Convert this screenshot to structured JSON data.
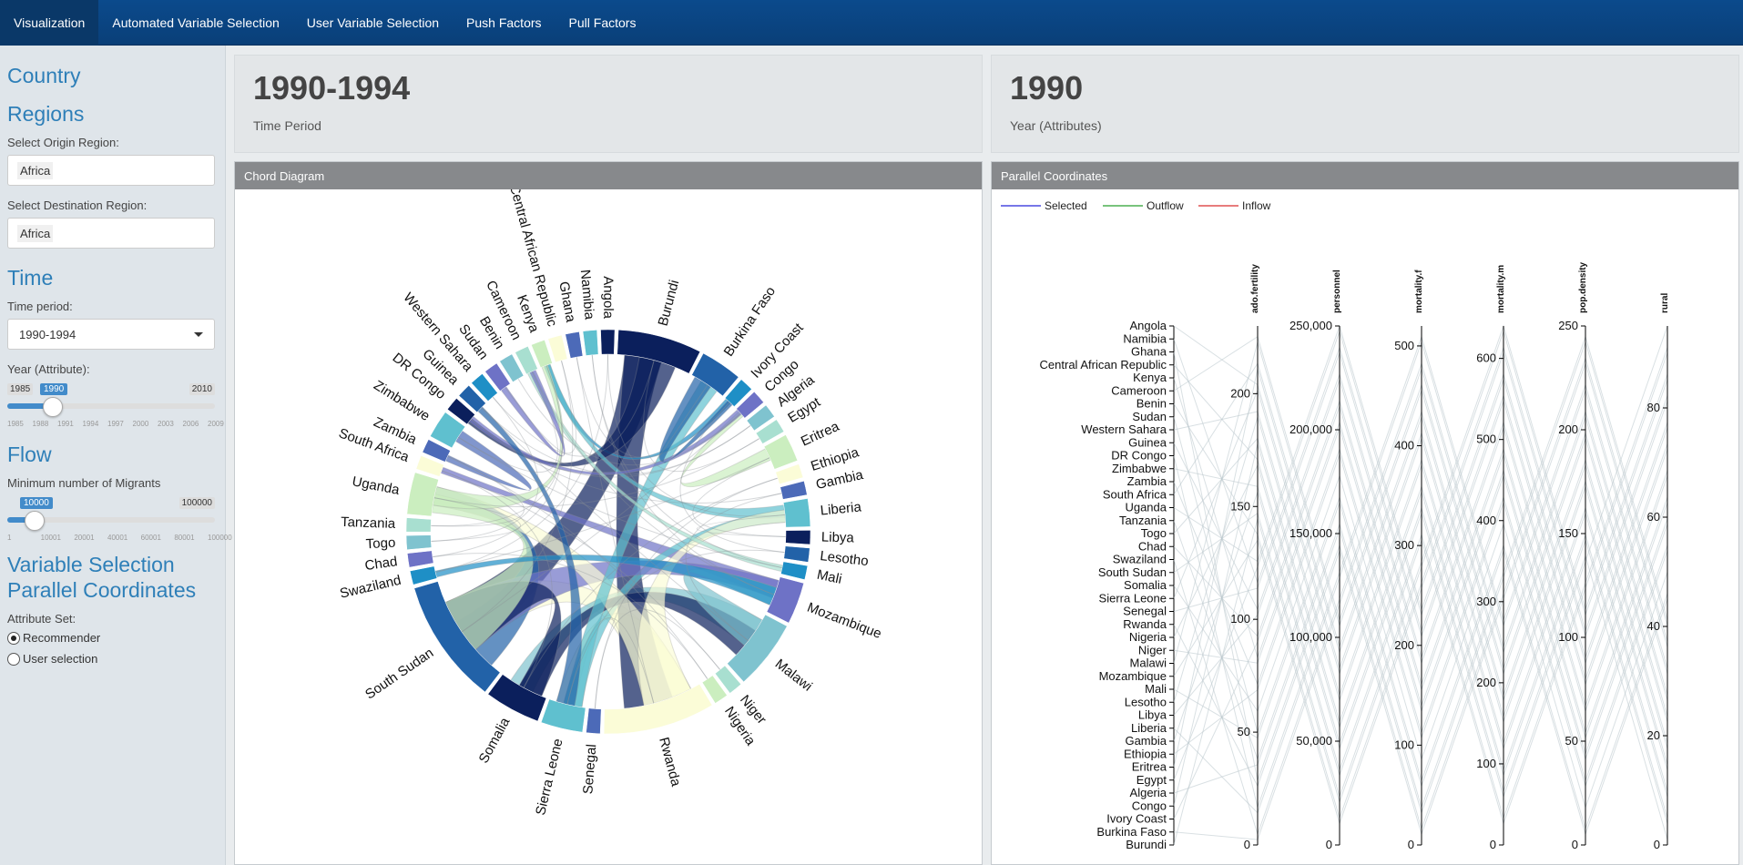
{
  "navbar": {
    "items": [
      {
        "label": "Visualization",
        "active": true
      },
      {
        "label": "Automated Variable Selection",
        "active": false
      },
      {
        "label": "User Variable Selection",
        "active": false
      },
      {
        "label": "Push Factors",
        "active": false
      },
      {
        "label": "Pull Factors",
        "active": false
      }
    ]
  },
  "sidebar": {
    "country_heading": "Country",
    "regions_heading": "Regions",
    "origin_label": "Select Origin Region:",
    "origin_value": "Africa",
    "destination_label": "Select Destination Region:",
    "destination_value": "Africa",
    "time_heading": "Time",
    "time_period_label": "Time period:",
    "time_period_value": "1990-1994",
    "year_label": "Year (Attribute):",
    "year_min": "1985",
    "year_max": "2010",
    "year_value": "1990",
    "year_ticks": [
      "1985",
      "1988",
      "1991",
      "1994",
      "1997",
      "2000",
      "2003",
      "2006",
      "2009"
    ],
    "flow_heading": "Flow",
    "migrants_label": "Minimum number of Migrants",
    "migrants_min": "10000",
    "migrants_max": "100000",
    "migrants_value": "10000",
    "migrants_ticks": [
      "1",
      "10001",
      "20001",
      "40001",
      "60001",
      "80001",
      "100000"
    ],
    "varsel_heading_1": "Variable Selection",
    "varsel_heading_2": "Parallel Coordinates",
    "attribute_set_label": "Attribute Set:",
    "radio_recommender": "Recommender",
    "radio_user": "User selection"
  },
  "value_boxes": {
    "period_value": "1990-1994",
    "period_label": "Time Period",
    "year_value": "1990",
    "year_label": "Year (Attributes)"
  },
  "chord_panel": {
    "title": "Chord Diagram",
    "countries": [
      "Burundi",
      "Burkina Faso",
      "Ivory Coast",
      "Congo",
      "Algeria",
      "Egypt",
      "Eritrea",
      "Ethiopia",
      "Gambia",
      "Liberia",
      "Libya",
      "Lesotho",
      "Mali",
      "Mozambique",
      "Malawi",
      "Niger",
      "Nigeria",
      "Rwanda",
      "Senegal",
      "Sierra Leone",
      "Somalia",
      "South Sudan",
      "Swaziland",
      "Chad",
      "Togo",
      "Tanzania",
      "Uganda",
      "South Africa",
      "Zambia",
      "Zimbabwe",
      "DR Congo",
      "Guinea",
      "Western Sahara",
      "Sudan",
      "Benin",
      "Cameroon",
      "Kenya",
      "Central African Republic",
      "Ghana",
      "Namibia",
      "Angola"
    ]
  },
  "pc_panel": {
    "title": "Parallel Coordinates",
    "legend": [
      {
        "label": "Selected",
        "color": "#4a4ae0"
      },
      {
        "label": "Outflow",
        "color": "#4caf50"
      },
      {
        "label": "Inflow",
        "color": "#e05050"
      }
    ],
    "countries": [
      "Angola",
      "Namibia",
      "Ghana",
      "Central African Republic",
      "Kenya",
      "Cameroon",
      "Benin",
      "Sudan",
      "Western Sahara",
      "Guinea",
      "DR Congo",
      "Zimbabwe",
      "Zambia",
      "South Africa",
      "Uganda",
      "Tanzania",
      "Togo",
      "Chad",
      "Swaziland",
      "South Sudan",
      "Somalia",
      "Sierra Leone",
      "Senegal",
      "Rwanda",
      "Nigeria",
      "Niger",
      "Malawi",
      "Mozambique",
      "Mali",
      "Lesotho",
      "Libya",
      "Liberia",
      "Gambia",
      "Ethiopia",
      "Eritrea",
      "Egypt",
      "Algeria",
      "Congo",
      "Ivory Coast",
      "Burkina Faso",
      "Burundi"
    ],
    "axes": [
      {
        "name": "ado.fertility",
        "ticks": [
          {
            "v": 0,
            "t": "0"
          },
          {
            "v": 50,
            "t": "50"
          },
          {
            "v": 100,
            "t": "100"
          },
          {
            "v": 150,
            "t": "150"
          },
          {
            "v": 200,
            "t": "200"
          }
        ],
        "max": 230
      },
      {
        "name": "personnel",
        "ticks": [
          {
            "v": 0,
            "t": "0"
          },
          {
            "v": 50000,
            "t": "50,000"
          },
          {
            "v": 100000,
            "t": "100,000"
          },
          {
            "v": 150000,
            "t": "150,000"
          },
          {
            "v": 200000,
            "t": "200,000"
          },
          {
            "v": 250000,
            "t": "250,000"
          }
        ],
        "max": 250000
      },
      {
        "name": "mortality.f",
        "ticks": [
          {
            "v": 0,
            "t": "0"
          },
          {
            "v": 100,
            "t": "100"
          },
          {
            "v": 200,
            "t": "200"
          },
          {
            "v": 300,
            "t": "300"
          },
          {
            "v": 400,
            "t": "400"
          },
          {
            "v": 500,
            "t": "500"
          }
        ],
        "max": 520
      },
      {
        "name": "mortality.m",
        "ticks": [
          {
            "v": 0,
            "t": "0"
          },
          {
            "v": 100,
            "t": "100"
          },
          {
            "v": 200,
            "t": "200"
          },
          {
            "v": 300,
            "t": "300"
          },
          {
            "v": 400,
            "t": "400"
          },
          {
            "v": 500,
            "t": "500"
          },
          {
            "v": 600,
            "t": "600"
          }
        ],
        "max": 640
      },
      {
        "name": "pop.density",
        "ticks": [
          {
            "v": 0,
            "t": "0"
          },
          {
            "v": 50,
            "t": "50"
          },
          {
            "v": 100,
            "t": "100"
          },
          {
            "v": 150,
            "t": "150"
          },
          {
            "v": 200,
            "t": "200"
          },
          {
            "v": 250,
            "t": "250"
          }
        ],
        "max": 250
      },
      {
        "name": "rural",
        "ticks": [
          {
            "v": 0,
            "t": "0"
          },
          {
            "v": 20,
            "t": "20"
          },
          {
            "v": 40,
            "t": "40"
          },
          {
            "v": 60,
            "t": "60"
          },
          {
            "v": 80,
            "t": "80"
          }
        ],
        "max": 95
      }
    ]
  }
}
